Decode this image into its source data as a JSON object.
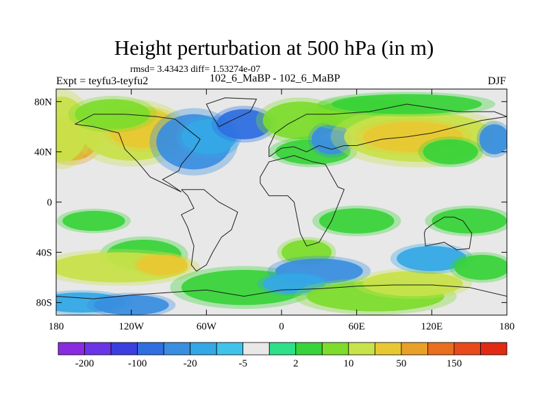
{
  "chart_data": {
    "type": "heatmap",
    "title": "Height perturbation at 500 hPa (in m)",
    "subtitle_stats": "rmsd= 3.43423 diff= 1.53274e-07",
    "subtitle_center": "102_6_MaBP - 102_6_MaBP",
    "left_label": "Expt = teyfu3-teyfu2",
    "right_label": "DJF",
    "x_ticks": [
      "180",
      "120W",
      "60W",
      "0",
      "60E",
      "120E",
      "180"
    ],
    "y_ticks": [
      "80N",
      "40N",
      "0",
      "40S",
      "80S"
    ],
    "xlim": [
      -180,
      180
    ],
    "ylim": [
      -90,
      90
    ],
    "colorbar": {
      "colors": [
        "#8a2be2",
        "#6a35e8",
        "#3b3fe0",
        "#2f6fe0",
        "#3a8ee0",
        "#34a7e6",
        "#3fc3ea",
        "#e8e8e8",
        "#2ee08a",
        "#38d33a",
        "#7ddc2c",
        "#c8e24a",
        "#e8c832",
        "#e8a028",
        "#e86e20",
        "#e84a1c",
        "#e02a14"
      ],
      "labels": [
        "-200",
        "-100",
        "-20",
        "-5",
        "2",
        "10",
        "50",
        "150"
      ]
    },
    "blobs": [
      {
        "lon": -168,
        "lat": 50,
        "rlon": 22,
        "rlat": 17,
        "level": 13
      },
      {
        "lon": -175,
        "lat": 58,
        "rlon": 20,
        "rlat": 26,
        "level": 11
      },
      {
        "lon": -120,
        "lat": 55,
        "rlon": 40,
        "rlat": 22,
        "level": 11
      },
      {
        "lon": -110,
        "lat": 58,
        "rlon": 28,
        "rlat": 15,
        "level": 12
      },
      {
        "lon": -135,
        "lat": 70,
        "rlon": 30,
        "rlat": 12,
        "level": 10
      },
      {
        "lon": -70,
        "lat": 48,
        "rlon": 30,
        "rlat": 22,
        "level": 4
      },
      {
        "lon": -58,
        "lat": 52,
        "rlon": 22,
        "rlat": 14,
        "level": 5
      },
      {
        "lon": -30,
        "lat": 62,
        "rlon": 22,
        "rlat": 12,
        "level": 3
      },
      {
        "lon": 15,
        "lat": 65,
        "rlon": 30,
        "rlat": 15,
        "level": 10
      },
      {
        "lon": 25,
        "lat": 40,
        "rlon": 30,
        "rlat": 10,
        "level": 9
      },
      {
        "lon": 40,
        "lat": 50,
        "rlon": 16,
        "rlat": 12,
        "level": 4
      },
      {
        "lon": 70,
        "lat": 70,
        "rlon": 45,
        "rlat": 12,
        "level": 10
      },
      {
        "lon": 110,
        "lat": 52,
        "rlon": 60,
        "rlat": 20,
        "level": 11
      },
      {
        "lon": 105,
        "lat": 52,
        "rlon": 40,
        "rlat": 12,
        "level": 12
      },
      {
        "lon": 135,
        "lat": 40,
        "rlon": 22,
        "rlat": 10,
        "level": 9
      },
      {
        "lon": 170,
        "lat": 50,
        "rlon": 12,
        "rlat": 12,
        "level": 4
      },
      {
        "lon": 100,
        "lat": 78,
        "rlon": 60,
        "rlat": 8,
        "level": 9
      },
      {
        "lon": -150,
        "lat": -15,
        "rlon": 25,
        "rlat": 8,
        "level": 9
      },
      {
        "lon": 60,
        "lat": -15,
        "rlon": 30,
        "rlat": 10,
        "level": 9
      },
      {
        "lon": 150,
        "lat": -15,
        "rlon": 30,
        "rlat": 10,
        "level": 9
      },
      {
        "lon": -110,
        "lat": -42,
        "rlon": 30,
        "rlat": 12,
        "level": 9
      },
      {
        "lon": -130,
        "lat": -52,
        "rlon": 55,
        "rlat": 12,
        "level": 11
      },
      {
        "lon": -95,
        "lat": -50,
        "rlon": 20,
        "rlat": 8,
        "level": 12
      },
      {
        "lon": -160,
        "lat": -80,
        "rlon": 35,
        "rlat": 8,
        "level": 5
      },
      {
        "lon": -120,
        "lat": -82,
        "rlon": 30,
        "rlat": 8,
        "level": 4
      },
      {
        "lon": -30,
        "lat": -68,
        "rlon": 50,
        "rlat": 14,
        "level": 9
      },
      {
        "lon": 20,
        "lat": -40,
        "rlon": 20,
        "rlat": 10,
        "level": 10
      },
      {
        "lon": 30,
        "lat": -55,
        "rlon": 35,
        "rlat": 10,
        "level": 4
      },
      {
        "lon": 10,
        "lat": -65,
        "rlon": 25,
        "rlat": 8,
        "level": 5
      },
      {
        "lon": 75,
        "lat": -75,
        "rlon": 55,
        "rlat": 12,
        "level": 10
      },
      {
        "lon": 105,
        "lat": -65,
        "rlon": 40,
        "rlat": 10,
        "level": 11
      },
      {
        "lon": 120,
        "lat": -45,
        "rlon": 28,
        "rlat": 10,
        "level": 5
      },
      {
        "lon": 160,
        "lat": -52,
        "rlon": 22,
        "rlat": 10,
        "level": 9
      }
    ]
  }
}
